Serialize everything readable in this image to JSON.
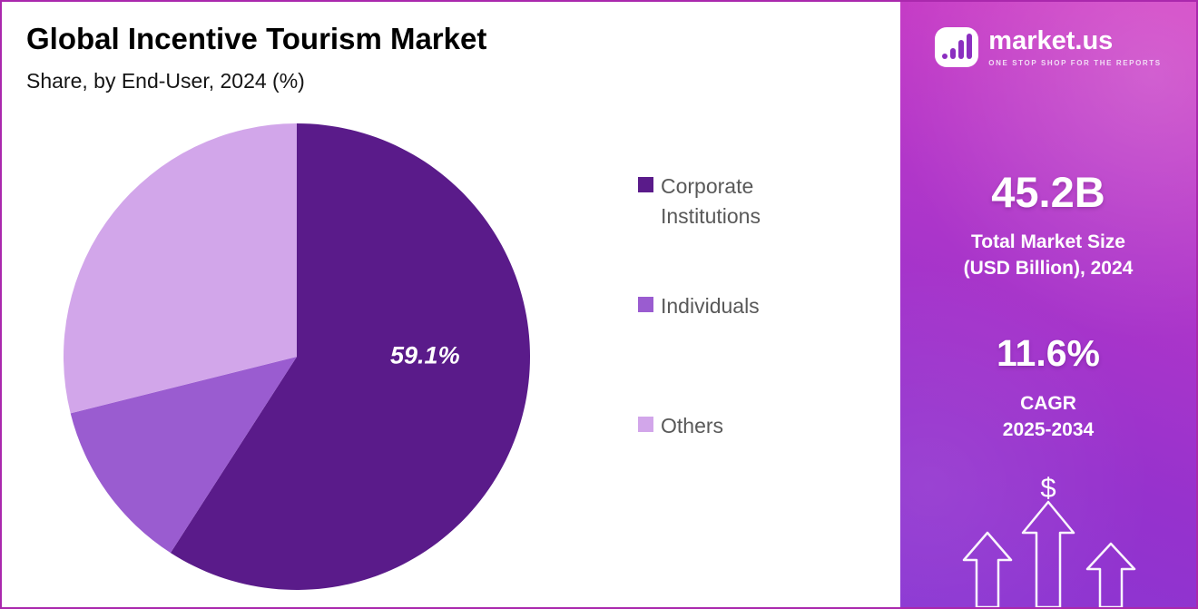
{
  "chart_data": {
    "type": "pie",
    "title": "Global Incentive Tourism Market",
    "subtitle": "Share, by End-User, 2024 (%)",
    "categories": [
      "Corporate Institutions",
      "Individuals",
      "Others"
    ],
    "values": [
      59.1,
      12.0,
      28.9
    ],
    "colors": [
      "#5a1b8a",
      "#9a5cd0",
      "#d2a6ea"
    ],
    "data_labels": [
      "59.1%",
      "",
      ""
    ],
    "start_angle": "top",
    "direction": "clockwise",
    "legend_position": "right",
    "grid": false
  },
  "sidebar": {
    "logo": {
      "brand": "market.us",
      "tagline": "ONE STOP SHOP FOR THE REPORTS",
      "icon": "signal-bars-icon"
    },
    "market_size": {
      "value": "45.2B",
      "label_line1": "Total Market Size",
      "label_line2": "(USD Billion), 2024"
    },
    "cagr": {
      "value": "11.6%",
      "label_line1": "CAGR",
      "label_line2": "2025-2034"
    },
    "dollar_symbol": "$",
    "colors": {
      "gradient_top": "#d23fc4",
      "gradient_bottom": "#8a35d2"
    }
  }
}
